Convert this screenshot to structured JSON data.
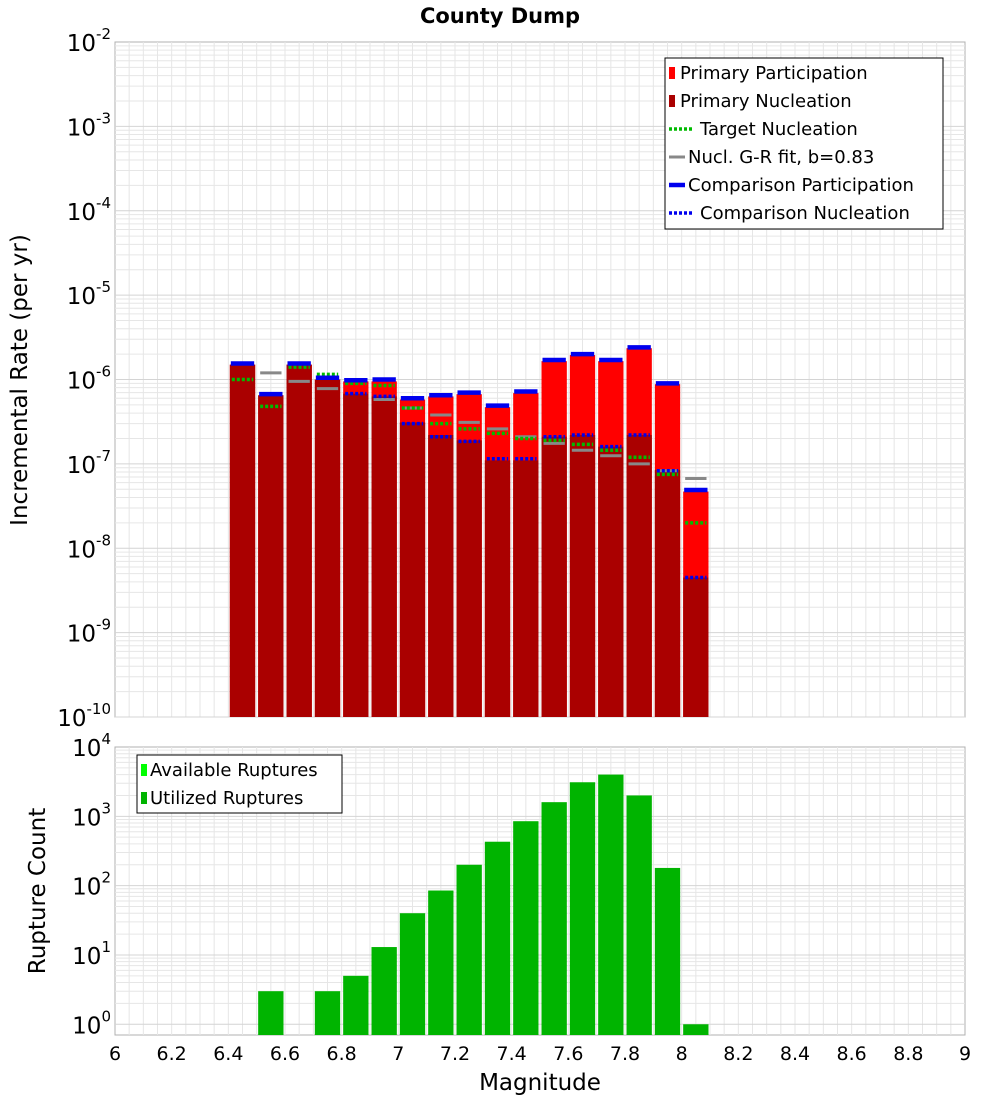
{
  "title": "County Dump",
  "colors": {
    "primary_participation": "#ff0000",
    "primary_nucleation": "#aa0000",
    "target_nucleation": "#00bb00",
    "gr_fit": "#888888",
    "comparison": "#0000ee",
    "ruptures_available": "#00ff00",
    "ruptures_utilized": "#00b400",
    "grid": "#e6e6e6"
  },
  "chart_data": [
    {
      "type": "bar",
      "name": "rate-panel",
      "xlabel": "Magnitude",
      "ylabel": "Incremental Rate (per yr)",
      "xlim": [
        6,
        9
      ],
      "ylim": [
        1e-10,
        0.01
      ],
      "yscale": "log",
      "x_ticks": [
        "6",
        "6.2",
        "6.4",
        "6.6",
        "6.8",
        "7",
        "7.2",
        "7.4",
        "7.6",
        "7.8",
        "8",
        "8.2",
        "8.4",
        "8.6",
        "8.8",
        "9"
      ],
      "y_tick_bases": [
        "10",
        "10",
        "10",
        "10",
        "10",
        "10",
        "10",
        "10",
        "10"
      ],
      "y_tick_exponents": [
        "-10",
        "-9",
        "-8",
        "-7",
        "-6",
        "-5",
        "-4",
        "-3",
        "-2"
      ],
      "legend_position": "top-right",
      "legend": [
        {
          "label": "Primary Participation",
          "style": "bar",
          "color_key": "primary_participation"
        },
        {
          "label": "Primary Nucleation",
          "style": "bar",
          "color_key": "primary_nucleation"
        },
        {
          "label": "Target Nucleation",
          "style": "dotted",
          "color_key": "target_nucleation"
        },
        {
          "label": "Nucl. G-R fit, b=0.83",
          "style": "line",
          "color_key": "gr_fit"
        },
        {
          "label": "Comparison Participation",
          "style": "thick",
          "color_key": "comparison"
        },
        {
          "label": "Comparison Nucleation",
          "style": "dotted",
          "color_key": "comparison"
        }
      ],
      "x": [
        6.45,
        6.55,
        6.65,
        6.75,
        6.85,
        6.95,
        7.05,
        7.15,
        7.25,
        7.35,
        7.45,
        7.55,
        7.65,
        7.75,
        7.85,
        7.95,
        8.05
      ],
      "series": [
        {
          "name": "Primary Participation",
          "values": [
            1.5e-06,
            6.5e-07,
            1.5e-06,
            1e-06,
            9.5e-07,
            9.5e-07,
            5.8e-07,
            6.3e-07,
            6.7e-07,
            4.7e-07,
            6.9e-07,
            1.65e-06,
            1.95e-06,
            1.65e-06,
            2.35e-06,
            8.8e-07,
            4.7e-08
          ]
        },
        {
          "name": "Primary Nucleation",
          "values": [
            1.5e-06,
            6.5e-07,
            1.5e-06,
            1e-06,
            6.8e-07,
            6.3e-07,
            3.1e-07,
            2.2e-07,
            1.9e-07,
            1.1e-07,
            1.1e-07,
            2.1e-07,
            2.2e-07,
            1.6e-07,
            2.2e-07,
            8.5e-08,
            4.5e-09
          ]
        },
        {
          "name": "Target Nucleation",
          "values": [
            1e-06,
            4.8e-07,
            1.4e-06,
            1.15e-06,
            9e-07,
            8.5e-07,
            4.6e-07,
            3e-07,
            2.6e-07,
            2.3e-07,
            2e-07,
            1.9e-07,
            1.7e-07,
            1.45e-07,
            1.2e-07,
            7.5e-08,
            2e-08
          ]
        },
        {
          "name": "Nucl. G-R fit, b=0.83",
          "values": [
            null,
            1.2e-06,
            9.5e-07,
            7.8e-07,
            null,
            5.8e-07,
            4.6e-07,
            3.8e-07,
            3.1e-07,
            2.6e-07,
            2.1e-07,
            1.75e-07,
            1.45e-07,
            1.25e-07,
            1e-07,
            8.3e-08,
            6.7e-08
          ]
        },
        {
          "name": "Comparison Participation",
          "values": [
            1.55e-06,
            6.7e-07,
            1.55e-06,
            1.05e-06,
            9.8e-07,
            1e-06,
            6e-07,
            6.5e-07,
            7e-07,
            4.9e-07,
            7.2e-07,
            1.7e-06,
            2e-06,
            1.7e-06,
            2.4e-06,
            9e-07,
            4.9e-08
          ]
        },
        {
          "name": "Comparison Nucleation",
          "values": [
            null,
            null,
            null,
            null,
            6.8e-07,
            6.3e-07,
            3e-07,
            2.1e-07,
            1.85e-07,
            1.15e-07,
            1.15e-07,
            2.1e-07,
            2.2e-07,
            1.6e-07,
            2.2e-07,
            8.3e-08,
            4.5e-09
          ]
        }
      ]
    },
    {
      "type": "bar",
      "name": "rupture-panel",
      "xlabel": "Magnitude",
      "ylabel": "Rupture Count",
      "xlim": [
        6,
        9
      ],
      "ylim": [
        0.7,
        10000
      ],
      "yscale": "log",
      "y_tick_bases": [
        "10",
        "10",
        "10",
        "10",
        "10"
      ],
      "y_tick_exponents": [
        "0",
        "1",
        "2",
        "3",
        "4"
      ],
      "legend_position": "top-left",
      "legend": [
        {
          "label": "Available Ruptures",
          "color_key": "ruptures_available"
        },
        {
          "label": "Utilized Ruptures",
          "color_key": "ruptures_utilized"
        }
      ],
      "x": [
        6.55,
        6.75,
        6.85,
        6.95,
        7.05,
        7.15,
        7.25,
        7.35,
        7.45,
        7.55,
        7.65,
        7.75,
        7.85,
        7.95,
        8.05
      ],
      "series": [
        {
          "name": "Utilized Ruptures",
          "values": [
            3,
            3,
            5,
            13,
            40,
            85,
            200,
            430,
            850,
            1600,
            3100,
            4000,
            2000,
            180,
            1
          ]
        }
      ]
    }
  ]
}
